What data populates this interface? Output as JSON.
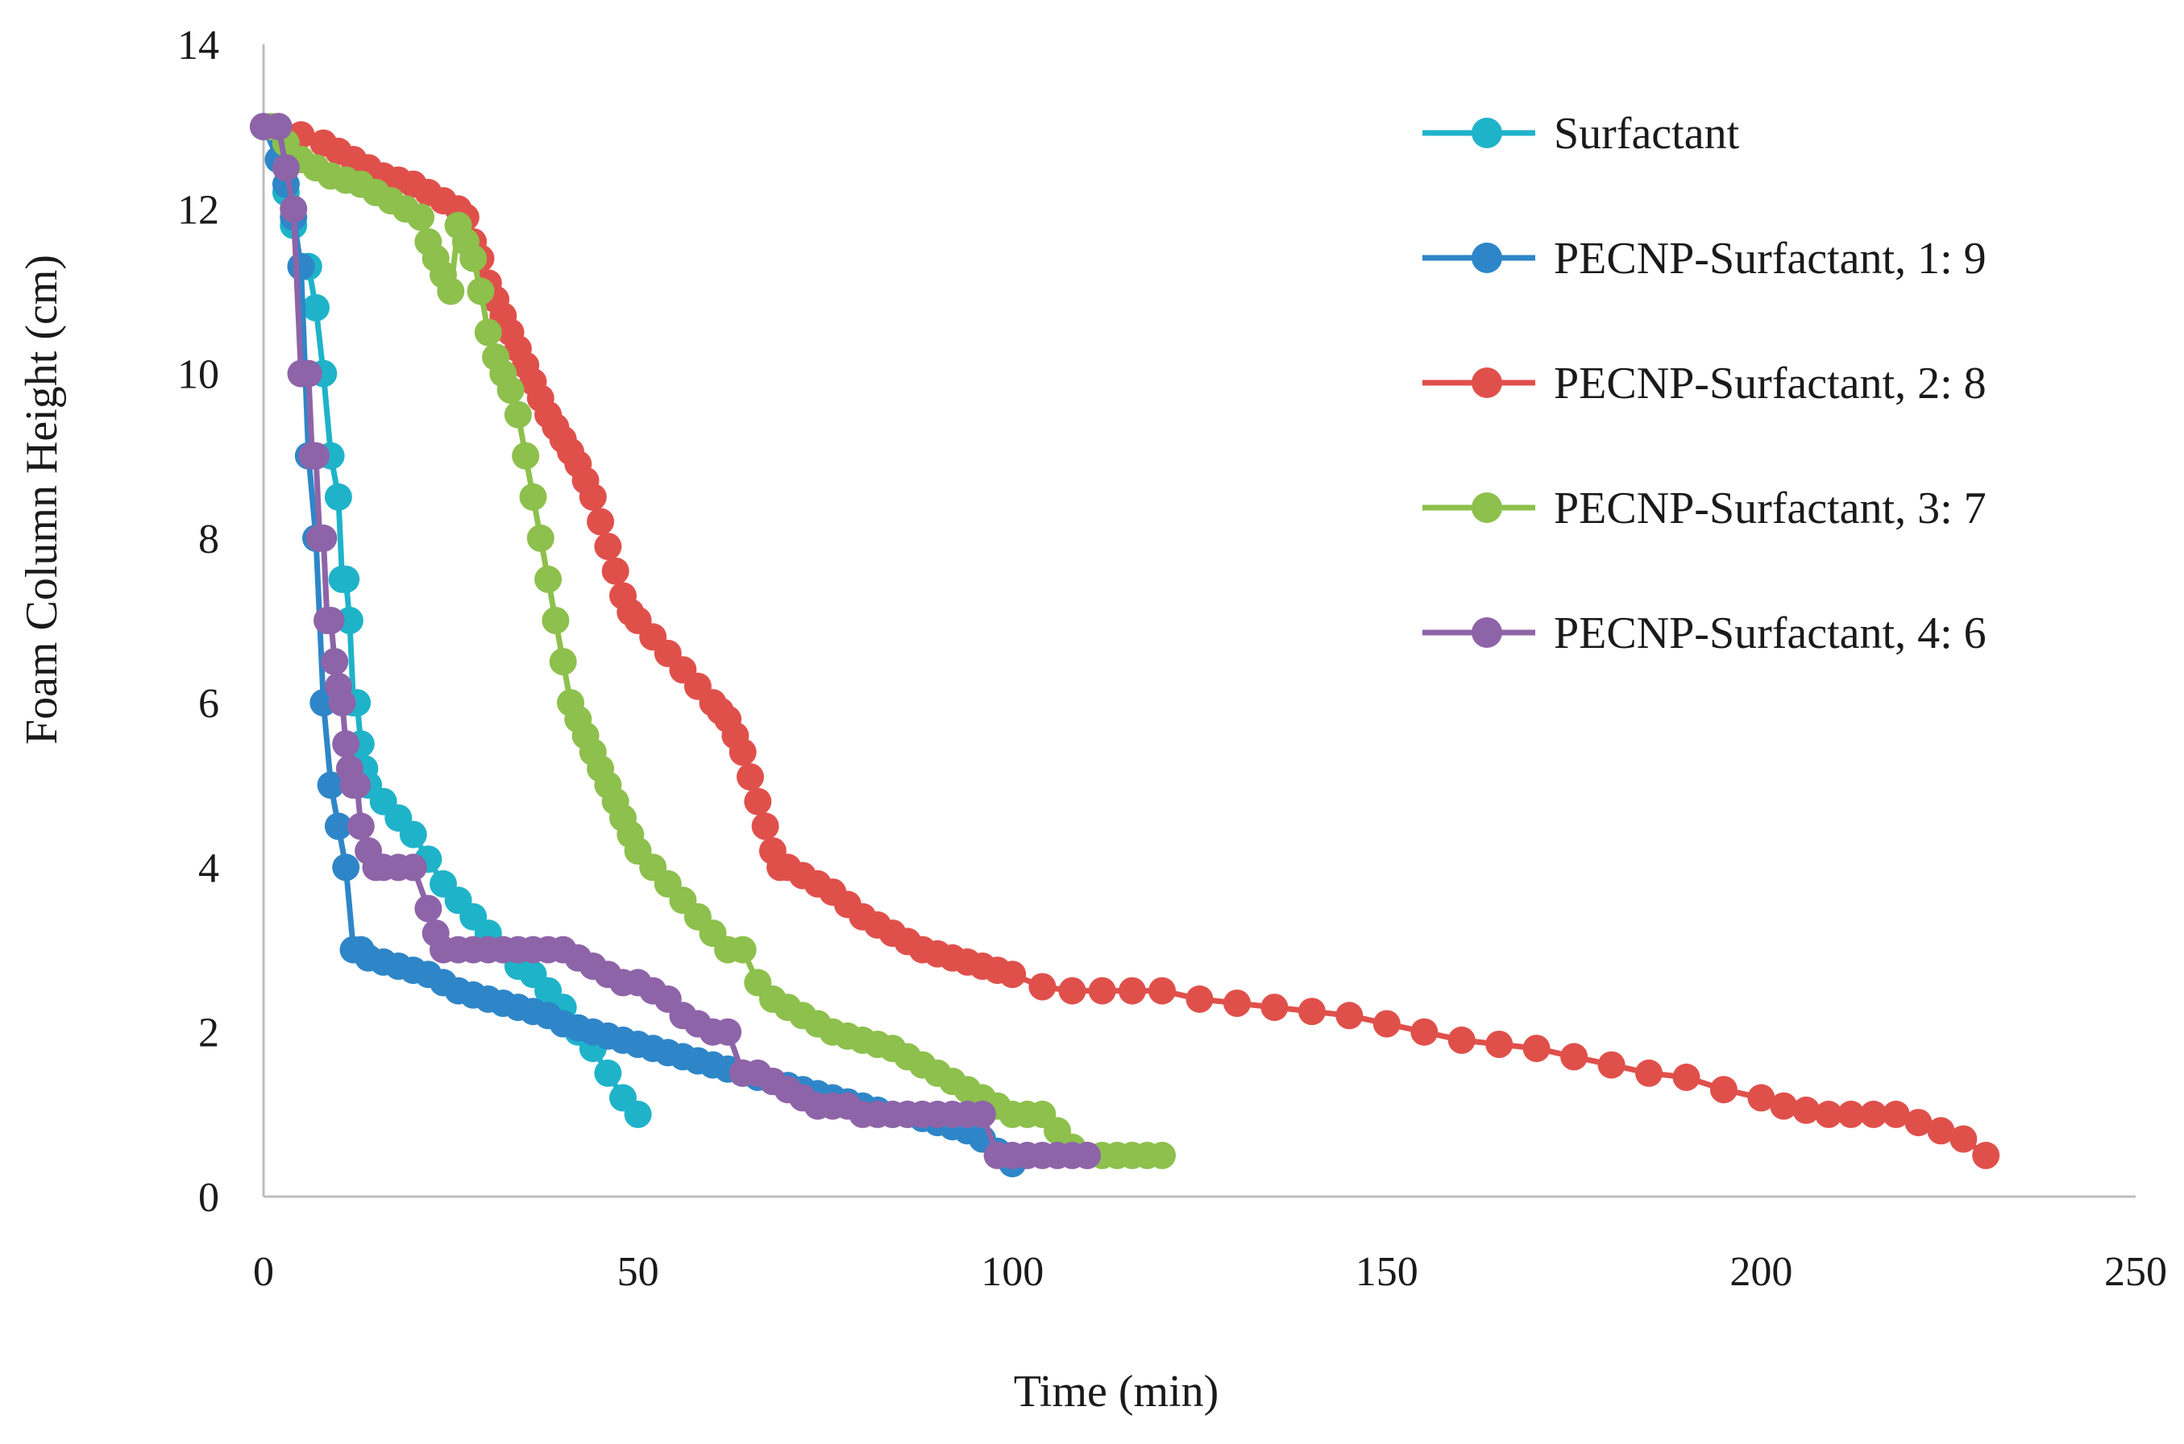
{
  "chart_data": {
    "type": "line",
    "title": "",
    "xlabel": "Time (min)",
    "ylabel": "Foam Column Height (cm)",
    "xlim": [
      0,
      250
    ],
    "ylim": [
      0,
      14
    ],
    "x_ticks": [
      0,
      50,
      100,
      150,
      200,
      250
    ],
    "y_ticks": [
      0,
      2,
      4,
      6,
      8,
      10,
      12,
      14
    ],
    "x_tick_labels": [
      "0",
      "50",
      "100",
      "150",
      "200",
      "250"
    ],
    "y_tick_labels": [
      "0",
      "2",
      "4",
      "6",
      "8",
      "10",
      "12",
      "14"
    ],
    "grid": false,
    "legend_position": "right",
    "series": [
      {
        "name": "Surfactant",
        "color": "#1fb3c9",
        "x": [
          0,
          2,
          3,
          4,
          5,
          6,
          7,
          8,
          9,
          10,
          10.5,
          11,
          11.5,
          12,
          12.5,
          13,
          13.5,
          14,
          16,
          18,
          20,
          22,
          24,
          26,
          28,
          30,
          32,
          34,
          36,
          38,
          40,
          42,
          44,
          46,
          48,
          50
        ],
        "y": [
          13,
          12.6,
          12.2,
          11.8,
          11.3,
          11.3,
          10.8,
          10,
          9,
          8.5,
          7.5,
          7.5,
          7,
          6,
          6,
          5.5,
          5.2,
          5,
          4.8,
          4.6,
          4.4,
          4.1,
          3.8,
          3.6,
          3.4,
          3.2,
          3.0,
          2.8,
          2.7,
          2.5,
          2.3,
          2.0,
          1.8,
          1.5,
          1.2,
          1.0
        ]
      },
      {
        "name": "PECNP-Surfactant, 1: 9",
        "color": "#2e86c8",
        "x": [
          0,
          2,
          3,
          4,
          5,
          6,
          7,
          8,
          9,
          10,
          11,
          12,
          13,
          14,
          16,
          18,
          20,
          22,
          24,
          26,
          28,
          30,
          32,
          34,
          36,
          38,
          40,
          42,
          44,
          46,
          48,
          50,
          52,
          54,
          56,
          58,
          60,
          62,
          64,
          66,
          68,
          70,
          72,
          74,
          76,
          78,
          80,
          82,
          84,
          86,
          88,
          90,
          92,
          94,
          96,
          98,
          100
        ],
        "y": [
          13,
          12.6,
          12.3,
          11.9,
          11.3,
          9,
          8,
          6,
          5,
          4.5,
          4,
          3,
          3,
          2.9,
          2.85,
          2.8,
          2.75,
          2.7,
          2.6,
          2.5,
          2.45,
          2.4,
          2.35,
          2.3,
          2.25,
          2.2,
          2.1,
          2.05,
          2.0,
          1.95,
          1.9,
          1.85,
          1.8,
          1.75,
          1.7,
          1.65,
          1.6,
          1.55,
          1.5,
          1.45,
          1.4,
          1.35,
          1.3,
          1.25,
          1.2,
          1.15,
          1.1,
          1.05,
          1.0,
          1.0,
          0.95,
          0.9,
          0.85,
          0.8,
          0.7,
          0.55,
          0.4
        ]
      },
      {
        "name": "PECNP-Surfactant, 2: 8",
        "color": "#e0504b",
        "x": [
          2,
          5,
          8,
          10,
          12,
          14,
          16,
          18,
          20,
          22,
          24,
          26,
          27,
          28,
          29,
          30,
          31,
          32,
          33,
          34,
          35,
          36,
          37,
          38,
          39,
          40,
          41,
          42,
          43,
          44,
          45,
          46,
          47,
          48,
          49,
          50,
          52,
          54,
          56,
          58,
          60,
          61,
          62,
          63,
          64,
          65,
          66,
          67,
          68,
          69,
          70,
          72,
          74,
          76,
          78,
          80,
          82,
          84,
          86,
          88,
          90,
          92,
          94,
          96,
          98,
          100,
          104,
          108,
          112,
          116,
          120,
          125,
          130,
          135,
          140,
          145,
          150,
          155,
          160,
          165,
          170,
          175,
          180,
          185,
          190,
          195,
          200,
          203,
          206,
          209,
          212,
          215,
          218,
          221,
          224,
          227,
          230
        ],
        "y": [
          13,
          12.9,
          12.8,
          12.7,
          12.6,
          12.5,
          12.4,
          12.35,
          12.3,
          12.2,
          12.1,
          12.0,
          11.9,
          11.6,
          11.4,
          11.1,
          10.9,
          10.7,
          10.5,
          10.3,
          10.1,
          9.9,
          9.7,
          9.5,
          9.35,
          9.2,
          9.05,
          8.9,
          8.7,
          8.5,
          8.2,
          7.9,
          7.6,
          7.3,
          7.1,
          7.0,
          6.8,
          6.6,
          6.4,
          6.2,
          6.0,
          5.9,
          5.8,
          5.6,
          5.4,
          5.1,
          4.8,
          4.5,
          4.2,
          4.0,
          4.0,
          3.9,
          3.8,
          3.7,
          3.55,
          3.4,
          3.3,
          3.2,
          3.1,
          3.0,
          2.95,
          2.9,
          2.85,
          2.8,
          2.75,
          2.7,
          2.55,
          2.5,
          2.5,
          2.5,
          2.5,
          2.4,
          2.35,
          2.3,
          2.25,
          2.2,
          2.1,
          2.0,
          1.9,
          1.85,
          1.8,
          1.7,
          1.6,
          1.5,
          1.45,
          1.3,
          1.2,
          1.1,
          1.05,
          1.0,
          1.0,
          1.0,
          1.0,
          0.9,
          0.8,
          0.7,
          0.5
        ]
      },
      {
        "name": "PECNP-Surfactant, 3: 7",
        "color": "#8dc04c",
        "x": [
          1,
          3,
          5,
          7,
          9,
          11,
          13,
          15,
          17,
          19,
          21,
          22,
          23,
          24,
          25,
          26,
          27,
          28,
          29,
          30,
          31,
          32,
          33,
          34,
          35,
          36,
          37,
          38,
          39,
          40,
          41,
          42,
          43,
          44,
          45,
          46,
          47,
          48,
          49,
          50,
          52,
          54,
          56,
          58,
          60,
          62,
          64,
          66,
          68,
          70,
          72,
          74,
          76,
          78,
          80,
          82,
          84,
          86,
          88,
          90,
          92,
          94,
          96,
          98,
          100,
          102,
          104,
          106,
          108,
          110,
          112,
          114,
          116,
          118,
          120
        ],
        "y": [
          13,
          12.8,
          12.6,
          12.5,
          12.4,
          12.35,
          12.3,
          12.2,
          12.1,
          12.0,
          11.9,
          11.6,
          11.4,
          11.2,
          11.0,
          11.8,
          11.6,
          11.4,
          11.0,
          10.5,
          10.2,
          10.0,
          9.8,
          9.5,
          9.0,
          8.5,
          8.0,
          7.5,
          7.0,
          6.5,
          6.0,
          5.8,
          5.6,
          5.4,
          5.2,
          5.0,
          4.8,
          4.6,
          4.4,
          4.2,
          4.0,
          3.8,
          3.6,
          3.4,
          3.2,
          3.0,
          3.0,
          2.6,
          2.4,
          2.3,
          2.2,
          2.1,
          2.0,
          1.95,
          1.9,
          1.85,
          1.8,
          1.7,
          1.6,
          1.5,
          1.4,
          1.3,
          1.2,
          1.1,
          1.0,
          1.0,
          1.0,
          0.8,
          0.6,
          0.5,
          0.5,
          0.5,
          0.5,
          0.5,
          0.5
        ]
      },
      {
        "name": "PECNP-Surfactant, 4: 6",
        "color": "#8e64a8",
        "x": [
          0,
          2,
          3,
          4,
          5,
          6,
          6.5,
          7,
          7.5,
          8,
          8.5,
          9,
          9.5,
          10,
          10.5,
          11,
          11.5,
          12,
          12.5,
          13,
          14,
          15,
          16,
          18,
          20,
          22,
          23,
          24,
          26,
          28,
          30,
          32,
          34,
          36,
          38,
          40,
          42,
          44,
          46,
          48,
          50,
          52,
          54,
          56,
          58,
          60,
          62,
          64,
          66,
          68,
          70,
          72,
          74,
          76,
          78,
          80,
          82,
          84,
          86,
          88,
          90,
          92,
          94,
          96,
          98,
          100,
          102,
          104,
          106,
          108,
          110
        ],
        "y": [
          13,
          13,
          12.5,
          12.0,
          10.0,
          10.0,
          9.0,
          9.0,
          8.0,
          8.0,
          7.0,
          7.0,
          6.5,
          6.2,
          6.0,
          5.5,
          5.2,
          5.0,
          5.0,
          4.5,
          4.2,
          4.0,
          4.0,
          4.0,
          4.0,
          3.5,
          3.2,
          3.0,
          3.0,
          3.0,
          3.0,
          3.0,
          3.0,
          3.0,
          3.0,
          3.0,
          2.9,
          2.8,
          2.7,
          2.6,
          2.6,
          2.5,
          2.4,
          2.2,
          2.1,
          2.0,
          2.0,
          1.5,
          1.5,
          1.4,
          1.3,
          1.2,
          1.1,
          1.1,
          1.1,
          1.0,
          1.0,
          1.0,
          1.0,
          1.0,
          1.0,
          1.0,
          1.0,
          1.0,
          0.5,
          0.5,
          0.5,
          0.5,
          0.5,
          0.5,
          0.5
        ]
      }
    ]
  }
}
